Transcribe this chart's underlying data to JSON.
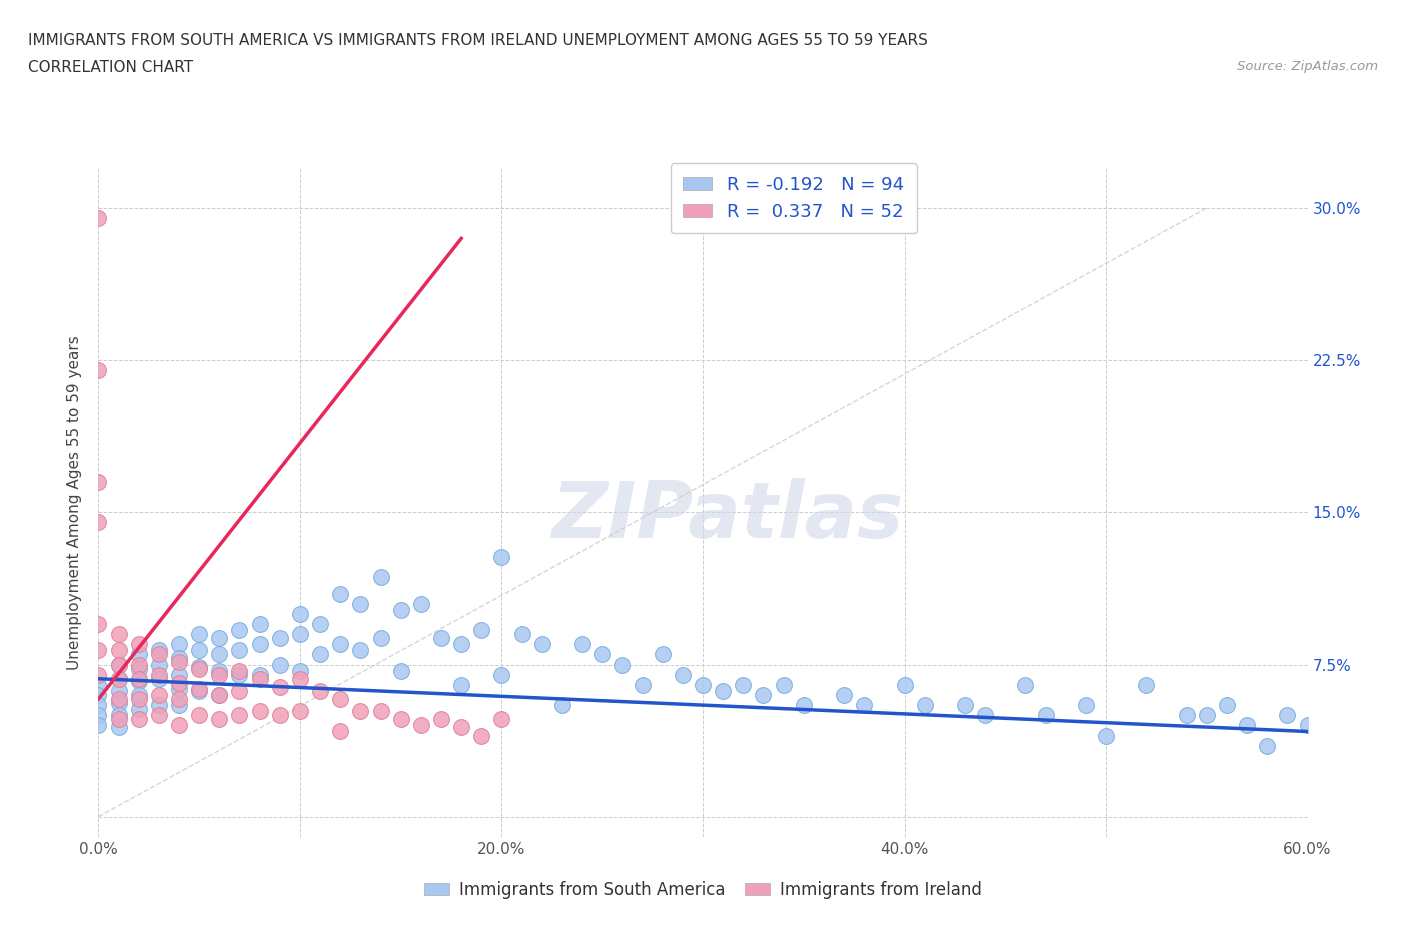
{
  "title_line1": "IMMIGRANTS FROM SOUTH AMERICA VS IMMIGRANTS FROM IRELAND UNEMPLOYMENT AMONG AGES 55 TO 59 YEARS",
  "title_line2": "CORRELATION CHART",
  "source_text": "Source: ZipAtlas.com",
  "ylabel": "Unemployment Among Ages 55 to 59 years",
  "xmin": 0.0,
  "xmax": 0.6,
  "ymin": -0.01,
  "ymax": 0.32,
  "xticks": [
    0.0,
    0.1,
    0.2,
    0.3,
    0.4,
    0.5,
    0.6
  ],
  "xticklabels": [
    "0.0%",
    "",
    "20.0%",
    "",
    "40.0%",
    "",
    "60.0%"
  ],
  "yticks_right": [
    0.0,
    0.075,
    0.15,
    0.225,
    0.3
  ],
  "yticklabels_right": [
    "",
    "7.5%",
    "15.0%",
    "22.5%",
    "30.0%"
  ],
  "color_blue": "#a8c8f0",
  "color_pink": "#f0a0b8",
  "color_blue_line": "#2255cc",
  "color_pink_line": "#e8285a",
  "R_blue": -0.192,
  "N_blue": 94,
  "R_pink": 0.337,
  "N_pink": 52,
  "legend_label_blue": "Immigrants from South America",
  "legend_label_pink": "Immigrants from Ireland",
  "watermark": "ZIPatlas",
  "blue_scatter_x": [
    0.0,
    0.0,
    0.0,
    0.0,
    0.0,
    0.01,
    0.01,
    0.01,
    0.01,
    0.01,
    0.01,
    0.02,
    0.02,
    0.02,
    0.02,
    0.02,
    0.03,
    0.03,
    0.03,
    0.03,
    0.04,
    0.04,
    0.04,
    0.04,
    0.04,
    0.05,
    0.05,
    0.05,
    0.05,
    0.06,
    0.06,
    0.06,
    0.06,
    0.07,
    0.07,
    0.07,
    0.08,
    0.08,
    0.08,
    0.09,
    0.09,
    0.1,
    0.1,
    0.1,
    0.11,
    0.11,
    0.12,
    0.12,
    0.13,
    0.13,
    0.14,
    0.14,
    0.15,
    0.15,
    0.16,
    0.17,
    0.18,
    0.18,
    0.19,
    0.2,
    0.2,
    0.21,
    0.22,
    0.23,
    0.24,
    0.25,
    0.26,
    0.27,
    0.28,
    0.29,
    0.3,
    0.31,
    0.32,
    0.33,
    0.34,
    0.35,
    0.37,
    0.38,
    0.4,
    0.41,
    0.43,
    0.44,
    0.46,
    0.47,
    0.49,
    0.5,
    0.52,
    0.54,
    0.55,
    0.56,
    0.57,
    0.58,
    0.59,
    0.6
  ],
  "blue_scatter_y": [
    0.065,
    0.06,
    0.055,
    0.05,
    0.045,
    0.075,
    0.068,
    0.062,
    0.056,
    0.05,
    0.044,
    0.08,
    0.073,
    0.067,
    0.06,
    0.053,
    0.082,
    0.075,
    0.068,
    0.055,
    0.085,
    0.078,
    0.07,
    0.063,
    0.055,
    0.09,
    0.082,
    0.074,
    0.062,
    0.088,
    0.08,
    0.072,
    0.06,
    0.092,
    0.082,
    0.07,
    0.095,
    0.085,
    0.07,
    0.088,
    0.075,
    0.1,
    0.09,
    0.072,
    0.095,
    0.08,
    0.11,
    0.085,
    0.105,
    0.082,
    0.118,
    0.088,
    0.102,
    0.072,
    0.105,
    0.088,
    0.085,
    0.065,
    0.092,
    0.128,
    0.07,
    0.09,
    0.085,
    0.055,
    0.085,
    0.08,
    0.075,
    0.065,
    0.08,
    0.07,
    0.065,
    0.062,
    0.065,
    0.06,
    0.065,
    0.055,
    0.06,
    0.055,
    0.065,
    0.055,
    0.055,
    0.05,
    0.065,
    0.05,
    0.055,
    0.04,
    0.065,
    0.05,
    0.05,
    0.055,
    0.045,
    0.035,
    0.05,
    0.045
  ],
  "pink_scatter_x": [
    0.0,
    0.0,
    0.0,
    0.0,
    0.0,
    0.0,
    0.0,
    0.01,
    0.01,
    0.01,
    0.01,
    0.01,
    0.01,
    0.02,
    0.02,
    0.02,
    0.02,
    0.02,
    0.03,
    0.03,
    0.03,
    0.03,
    0.04,
    0.04,
    0.04,
    0.04,
    0.05,
    0.05,
    0.05,
    0.06,
    0.06,
    0.06,
    0.07,
    0.07,
    0.07,
    0.08,
    0.08,
    0.09,
    0.09,
    0.1,
    0.1,
    0.11,
    0.12,
    0.12,
    0.13,
    0.14,
    0.15,
    0.16,
    0.17,
    0.18,
    0.19,
    0.2
  ],
  "pink_scatter_y": [
    0.295,
    0.22,
    0.165,
    0.145,
    0.095,
    0.082,
    0.07,
    0.09,
    0.082,
    0.075,
    0.068,
    0.058,
    0.048,
    0.085,
    0.075,
    0.068,
    0.058,
    0.048,
    0.08,
    0.07,
    0.06,
    0.05,
    0.076,
    0.066,
    0.058,
    0.045,
    0.073,
    0.063,
    0.05,
    0.07,
    0.06,
    0.048,
    0.072,
    0.062,
    0.05,
    0.068,
    0.052,
    0.064,
    0.05,
    0.068,
    0.052,
    0.062,
    0.058,
    0.042,
    0.052,
    0.052,
    0.048,
    0.045,
    0.048,
    0.044,
    0.04,
    0.048
  ]
}
